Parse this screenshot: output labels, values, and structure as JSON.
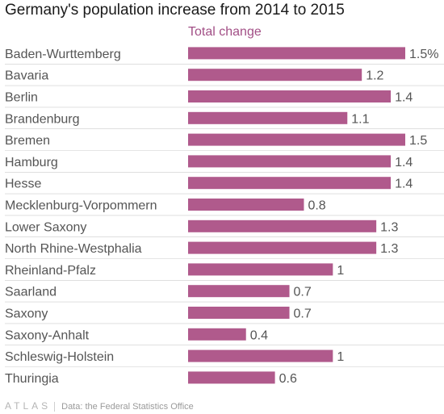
{
  "chart_data": {
    "type": "bar",
    "orientation": "horizontal",
    "title": "Germany's population increase from 2014 to 2015",
    "series_header": "Total change",
    "categories": [
      "Baden-Wurttemberg",
      "Bavaria",
      "Berlin",
      "Brandenburg",
      "Bremen",
      "Hamburg",
      "Hesse",
      "Mecklenburg-Vorpommern",
      "Lower Saxony",
      "North Rhine-Westphalia",
      "Rheinland-Pfalz",
      "Saarland",
      "Saxony",
      "Saxony-Anhalt",
      "Schleswig-Holstein",
      "Thuringia"
    ],
    "values": [
      1.5,
      1.2,
      1.4,
      1.1,
      1.5,
      1.4,
      1.4,
      0.8,
      1.3,
      1.3,
      1.0,
      0.7,
      0.7,
      0.4,
      1.0,
      0.6
    ],
    "value_labels": [
      "1.5%",
      "1.2",
      "1.4",
      "1.1",
      "1.5",
      "1.4",
      "1.4",
      "0.8",
      "1.3",
      "1.3",
      "1",
      "0.7",
      "0.7",
      "0.4",
      "1",
      "0.6"
    ],
    "xlim": [
      0,
      1.5
    ],
    "grid": false,
    "colors": {
      "bar": "#b05a8c",
      "header": "#a24f86",
      "label": "#555555",
      "divider": "#cccccc"
    }
  },
  "footer": {
    "brand": "ATLAS",
    "source": "Data: the Federal Statistics Office"
  }
}
